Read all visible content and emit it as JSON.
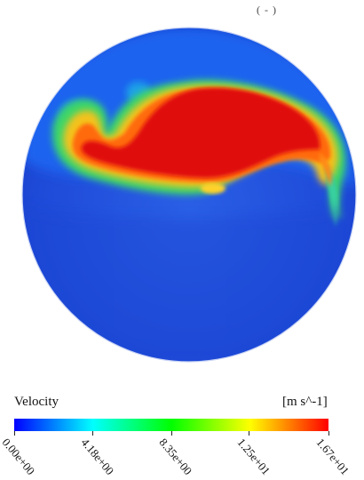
{
  "chart_data": {
    "type": "heatmap",
    "title": "",
    "variable": "Velocity",
    "unit": "[m s^-1]",
    "top_label": "( - )",
    "colormap": [
      "#0000ff",
      "#00ffff",
      "#00ff00",
      "#ffff00",
      "#ff0000"
    ],
    "range": [
      0.0,
      16.7
    ],
    "ticks": [
      {
        "value": 0.0,
        "label": "0.00e+00"
      },
      {
        "value": 4.18,
        "label": "4.18e+00"
      },
      {
        "value": 8.35,
        "label": "8.35e+00"
      },
      {
        "value": 12.5,
        "label": "1.25e+01"
      },
      {
        "value": 16.7,
        "label": "1.67e+01"
      }
    ]
  }
}
